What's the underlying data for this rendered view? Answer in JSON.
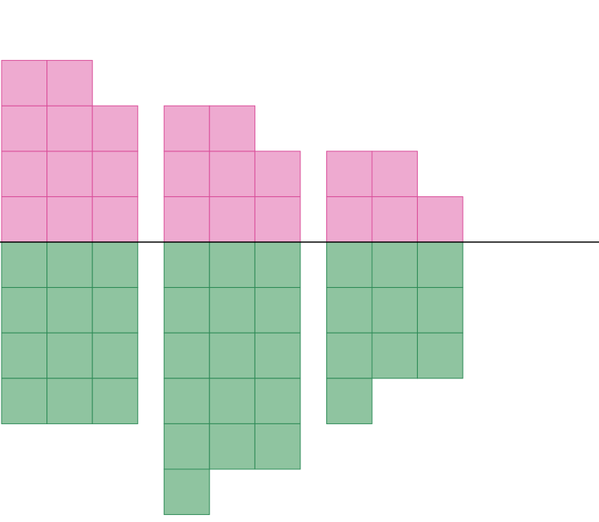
{
  "chart_data": {
    "type": "waffle",
    "categories": [
      null,
      null,
      null
    ],
    "series": [
      {
        "color": "#eeaad0",
        "values": [
          11,
          8,
          5
        ]
      },
      {
        "color": "#8fc4a0",
        "values": [
          12,
          16,
          10
        ]
      }
    ]
  }
}
